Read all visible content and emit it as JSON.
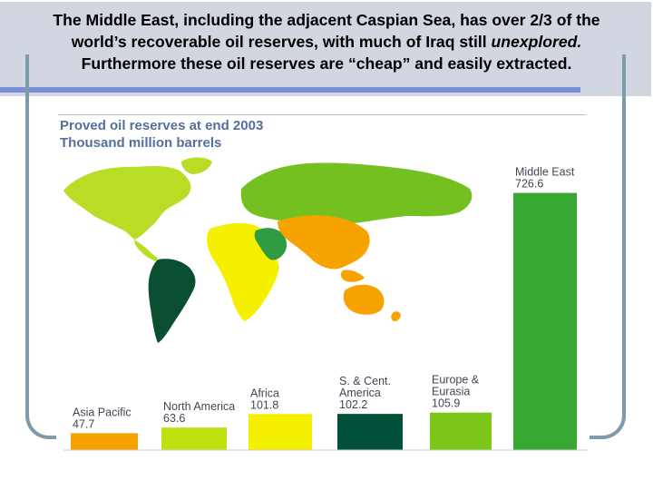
{
  "header": {
    "line1": "The Middle East, including the adjacent Caspian Sea, has over 2/3 of the",
    "line2_a": "world’s recoverable oil reserves, with much of Iraq still ",
    "line2_b": "unexplored.",
    "line3": "Furthermore these oil reserves are “cheap” and easily extracted."
  },
  "chart_data": {
    "type": "bar",
    "title": "Proved oil reserves at end 2003",
    "subtitle": "Thousand million barrels",
    "categories": [
      "Asia Pacific",
      "North America",
      "Africa",
      "S. & Cent. America",
      "Europe & Eurasia",
      "Middle East"
    ],
    "category_lines": [
      [
        "Asia Pacific"
      ],
      [
        "North America"
      ],
      [
        "Africa"
      ],
      [
        "S. & Cent.",
        "America"
      ],
      [
        "Europe &",
        "Eurasia"
      ],
      [
        "Middle East"
      ]
    ],
    "values": [
      47.7,
      63.6,
      101.8,
      102.2,
      105.9,
      726.6
    ],
    "value_labels": [
      "47.7",
      "63.6",
      "101.8",
      "102.2",
      "105.9",
      "726.6"
    ],
    "colors": [
      "#f6a300",
      "#bfe00e",
      "#f4f000",
      "#00503a",
      "#7cc519",
      "#37a832"
    ],
    "ylim": [
      0,
      800
    ],
    "grid": false
  },
  "map": {
    "region_colors": {
      "north_america": "#b9dd25",
      "south_america": "#0b4f32",
      "europe_eurasia": "#74c021",
      "africa": "#f4f000",
      "middle_east": "#2f9b43",
      "asia_pacific": "#f6a300"
    }
  }
}
